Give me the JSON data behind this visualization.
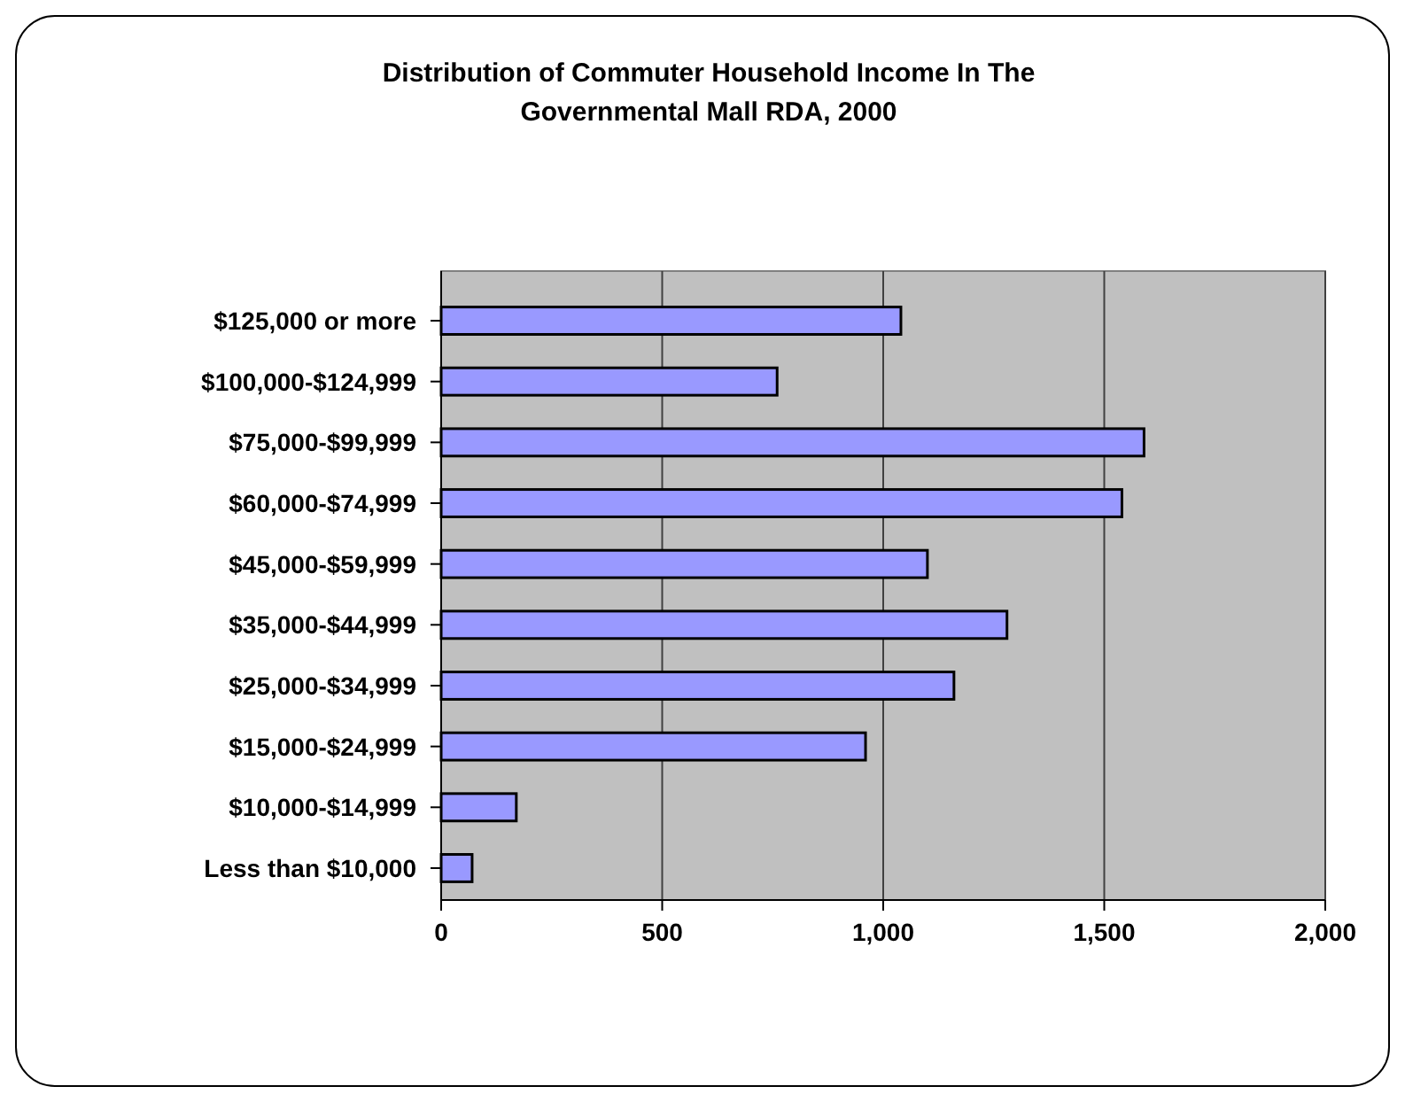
{
  "chart_data": {
    "type": "bar",
    "orientation": "horizontal",
    "title": "Distribution of Commuter Household Income In The Governmental Mall RDA, 2000",
    "categories": [
      "$125,000 or more",
      "$100,000-$124,999",
      "$75,000-$99,999",
      "$60,000-$74,999",
      "$45,000-$59,999",
      "$35,000-$44,999",
      "$25,000-$34,999",
      "$15,000-$24,999",
      "$10,000-$14,999",
      "Less than $10,000"
    ],
    "values": [
      1040,
      760,
      1590,
      1540,
      1100,
      1280,
      1160,
      960,
      170,
      70
    ],
    "color": "#9999ff",
    "xlim": [
      0,
      2000
    ],
    "xticks": [
      {
        "value": 0,
        "label": "0"
      },
      {
        "value": 500,
        "label": "500"
      },
      {
        "value": 1000,
        "label": "1,000"
      },
      {
        "value": 1500,
        "label": "1,500"
      },
      {
        "value": 2000,
        "label": "2,000"
      }
    ],
    "grid": "x"
  }
}
